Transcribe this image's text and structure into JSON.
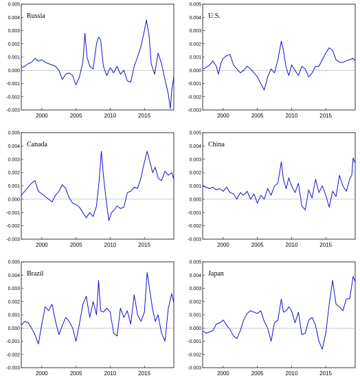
{
  "colors": {
    "line": "#1010d0",
    "zero": "#9a9a9a",
    "frame": "#000000"
  },
  "chart_data": [
    {
      "type": "line",
      "title": "Russia",
      "ylim": [
        -0.003,
        0.005
      ],
      "yticks": [
        0.005,
        0.004,
        0.003,
        0.002,
        0.001,
        0.0,
        -0.001,
        -0.002,
        -0.003
      ],
      "ytick_labels": [
        "0.005",
        "0.004",
        "0.003",
        "0.002",
        "0.001",
        "0.000",
        "-0.001",
        "-0.002",
        "-0.003"
      ],
      "xlim": [
        1997,
        2019.3
      ],
      "xticks": [
        2000,
        2005,
        2010,
        2015
      ],
      "xtick_labels": [
        "2000",
        "2005",
        "2010",
        "2015"
      ],
      "grid": false,
      "series": [
        {
          "x": [
            1997,
            1997.5,
            1998,
            1998.5,
            1999,
            1999.5,
            2000,
            2000.5,
            2001,
            2001.5,
            2002,
            2002.5,
            2003,
            2003.5,
            2004,
            2004.5,
            2005,
            2005.5,
            2006,
            2006.3,
            2006.6,
            2007,
            2007.5,
            2008,
            2008.3,
            2008.6,
            2009,
            2009.5,
            2010,
            2010.5,
            2011,
            2011.5,
            2012,
            2012.5,
            2013,
            2013.5,
            2014,
            2014.5,
            2015,
            2015.3,
            2015.7,
            2016,
            2016.5,
            2017,
            2017.5,
            2018,
            2018.5,
            2018.8,
            2019,
            2019.3
          ],
          "y": [
            0.0002,
            0.0003,
            0.0005,
            0.0006,
            0.0009,
            0.0007,
            0.0008,
            0.0006,
            0.0005,
            0.0004,
            0.0003,
            0.0,
            -0.0007,
            -0.0003,
            -0.0002,
            -0.0004,
            -0.0011,
            -0.0005,
            0.0006,
            0.0028,
            0.001,
            0.0003,
            0.0001,
            0.002,
            0.0025,
            0.0023,
            0.0003,
            -0.0004,
            0.0002,
            -0.0002,
            0.0003,
            -0.0003,
            0.0,
            -0.0008,
            -0.0009,
            0.0003,
            0.001,
            0.0018,
            0.003,
            0.0038,
            0.0025,
            0.0005,
            -0.0003,
            0.0013,
            0.0005,
            -0.0007,
            -0.0018,
            -0.0029,
            -0.0015,
            -0.0005
          ]
        }
      ]
    },
    {
      "type": "line",
      "title": "U.S.",
      "ylim": [
        -0.003,
        0.005
      ],
      "yticks": [
        0.005,
        0.004,
        0.003,
        0.002,
        0.001,
        0.0,
        -0.001,
        -0.002,
        -0.003
      ],
      "ytick_labels": [
        "0.005",
        "0.004",
        "0.003",
        "0.002",
        "0.001",
        "0.000",
        "-0.001",
        "-0.002",
        "-0.003"
      ],
      "xlim": [
        1997,
        2019.3
      ],
      "xticks": [
        2000,
        2005,
        2010,
        2015
      ],
      "xtick_labels": [
        "2000",
        "2005",
        "2010",
        "2015"
      ],
      "grid": false,
      "series": [
        {
          "x": [
            1997,
            1997.5,
            1998,
            1998.5,
            1999,
            1999.3,
            1999.7,
            2000,
            2000.5,
            2001,
            2001.5,
            2002,
            2002.5,
            2003,
            2003.5,
            2004,
            2004.5,
            2005,
            2005.5,
            2006,
            2006.5,
            2007,
            2007.5,
            2008,
            2008.5,
            2008.8,
            2009.2,
            2009.6,
            2010,
            2010.5,
            2011,
            2011.5,
            2012,
            2012.5,
            2013,
            2013.5,
            2014,
            2014.5,
            2015,
            2015.5,
            2016,
            2016.5,
            2017,
            2017.5,
            2018,
            2018.5,
            2019,
            2019.3
          ],
          "y": [
            0.0001,
            0.0002,
            0.0004,
            0.0007,
            0.0003,
            -0.0003,
            0.0006,
            0.0009,
            0.0011,
            0.0012,
            0.0004,
            0.0001,
            -0.0002,
            0.0,
            0.0003,
            0.0001,
            -0.0002,
            -0.0005,
            -0.001,
            -0.0015,
            -0.0005,
            0.0001,
            -0.0002,
            0.0008,
            0.0022,
            0.0015,
            0.0002,
            -0.0004,
            0.0004,
            0.0,
            -0.0004,
            0.0003,
            0.0001,
            -0.0005,
            -0.0002,
            0.0003,
            0.0003,
            0.0008,
            0.0013,
            0.0017,
            0.0015,
            0.0008,
            0.0006,
            0.0006,
            0.0007,
            0.0008,
            0.0009,
            0.0007
          ]
        }
      ]
    },
    {
      "type": "line",
      "title": "Canada",
      "ylim": [
        -0.003,
        0.005
      ],
      "yticks": [
        0.005,
        0.004,
        0.003,
        0.002,
        0.001,
        0.0,
        -0.001,
        -0.002,
        -0.003
      ],
      "ytick_labels": [
        "0.005",
        "0.004",
        "0.003",
        "0.002",
        "0.001",
        "0.000",
        "-0.001",
        "-0.002",
        "-0.003"
      ],
      "xlim": [
        1997,
        2019.3
      ],
      "xticks": [
        2000,
        2005,
        2010,
        2015
      ],
      "xtick_labels": [
        "2000",
        "2005",
        "2010",
        "2015"
      ],
      "grid": false,
      "series": [
        {
          "x": [
            1997,
            1997.5,
            1998,
            1998.5,
            1999,
            1999.5,
            2000,
            2000.5,
            2001,
            2001.5,
            2002,
            2002.5,
            2003,
            2003.5,
            2004,
            2004.5,
            2005,
            2005.5,
            2006,
            2006.5,
            2007,
            2007.5,
            2008,
            2008.4,
            2008.7,
            2009,
            2009.4,
            2009.8,
            2010.2,
            2010.6,
            2011,
            2011.5,
            2012,
            2012.5,
            2013,
            2013.5,
            2014,
            2014.5,
            2015,
            2015.4,
            2015.8,
            2016.2,
            2016.6,
            2017,
            2017.5,
            2018,
            2018.5,
            2019,
            2019.3
          ],
          "y": [
            0.0003,
            0.0006,
            0.0009,
            0.0012,
            0.0014,
            0.0006,
            0.0004,
            0.0002,
            0.0,
            -0.0002,
            0.0003,
            0.0006,
            0.0011,
            0.0008,
            0.0001,
            -0.0003,
            -0.0004,
            -0.0006,
            -0.001,
            -0.0014,
            -0.001,
            -0.0013,
            -0.0005,
            0.0015,
            0.0036,
            0.0018,
            0.0,
            -0.0016,
            -0.001,
            -0.0008,
            -0.0005,
            -0.0007,
            -0.0006,
            0.0005,
            0.0006,
            0.0009,
            0.0008,
            0.0016,
            0.0028,
            0.0036,
            0.0028,
            0.002,
            0.0024,
            0.0016,
            0.0014,
            0.0021,
            0.0018,
            0.002,
            0.0015
          ]
        }
      ]
    },
    {
      "type": "line",
      "title": "China",
      "ylim": [
        -0.003,
        0.005
      ],
      "yticks": [
        0.005,
        0.004,
        0.003,
        0.002,
        0.001,
        0.0,
        -0.001,
        -0.002,
        -0.003
      ],
      "ytick_labels": [
        "0.005",
        "0.004",
        "0.003",
        "0.002",
        "0.001",
        "0.000",
        "-0.001",
        "-0.002",
        "-0.003"
      ],
      "xlim": [
        1997,
        2019.3
      ],
      "xticks": [
        2000,
        2005,
        2010,
        2015
      ],
      "xtick_labels": [
        "2000",
        "2005",
        "2010",
        "2015"
      ],
      "grid": false,
      "series": [
        {
          "x": [
            1997,
            1997.5,
            1998,
            1998.5,
            1999,
            1999.5,
            2000,
            2000.5,
            2001,
            2001.5,
            2002,
            2002.5,
            2003,
            2003.5,
            2004,
            2004.5,
            2005,
            2005.5,
            2006,
            2006.5,
            2007,
            2007.5,
            2008,
            2008.5,
            2008.8,
            2009.2,
            2009.6,
            2010,
            2010.5,
            2011,
            2011.5,
            2012,
            2012.5,
            2013,
            2013.5,
            2014,
            2014.5,
            2015,
            2015.5,
            2016,
            2016.5,
            2017,
            2017.5,
            2018,
            2018.5,
            2018.8,
            2019,
            2019.3
          ],
          "y": [
            0.001,
            0.0009,
            0.0008,
            0.0009,
            0.0007,
            0.0008,
            0.0006,
            0.0009,
            0.0005,
            0.0004,
            0.0,
            0.0005,
            0.0003,
            0.0006,
            0.0,
            0.0004,
            -0.0003,
            0.0003,
            0.0,
            0.0008,
            0.0003,
            0.001,
            0.0012,
            0.0028,
            0.0015,
            0.0008,
            0.0016,
            0.001,
            0.0005,
            0.0012,
            -0.0005,
            -0.0008,
            0.0007,
            0.0001,
            0.0015,
            0.0005,
            0.001,
            0.0003,
            -0.0006,
            0.0006,
            0.0002,
            0.0018,
            0.001,
            0.0006,
            0.0015,
            0.0018,
            0.0031,
            0.0027
          ]
        }
      ]
    },
    {
      "type": "line",
      "title": "Brazil",
      "ylim": [
        -0.003,
        0.005
      ],
      "yticks": [
        0.005,
        0.004,
        0.003,
        0.002,
        0.001,
        0.0,
        -0.001,
        -0.002,
        -0.003
      ],
      "ytick_labels": [
        "0.005",
        "0.004",
        "0.003",
        "0.002",
        "0.001",
        "0.000",
        "-0.001",
        "-0.002",
        "-0.003"
      ],
      "xlim": [
        1997,
        2019.3
      ],
      "xticks": [
        2000,
        2005,
        2010,
        2015
      ],
      "xtick_labels": [
        "2000",
        "2005",
        "2010",
        "2015"
      ],
      "grid": false,
      "series": [
        {
          "x": [
            1997,
            1997.5,
            1998,
            1998.5,
            1999,
            1999.5,
            2000,
            2000.5,
            2001,
            2001.5,
            2002,
            2002.5,
            2003,
            2003.5,
            2004,
            2004.5,
            2005,
            2005.5,
            2006,
            2006.5,
            2007,
            2007.5,
            2008,
            2008.3,
            2008.6,
            2009,
            2009.5,
            2010,
            2010.5,
            2011,
            2011.5,
            2012,
            2012.5,
            2013,
            2013.5,
            2014,
            2014.5,
            2015,
            2015.4,
            2015.8,
            2016.2,
            2016.6,
            2017,
            2017.5,
            2018,
            2018.5,
            2019,
            2019.3
          ],
          "y": [
            0.0002,
            0.0005,
            0.0004,
            0.0,
            -0.0005,
            -0.0012,
            0.0003,
            0.0016,
            0.0013,
            0.0018,
            0.0005,
            -0.0005,
            0.0002,
            0.0008,
            0.0005,
            0.0,
            -0.001,
            0.0003,
            0.0018,
            0.0024,
            0.0008,
            0.002,
            0.001,
            0.0036,
            0.0013,
            0.0012,
            0.0015,
            0.0012,
            -0.0004,
            -0.0006,
            0.0015,
            0.0008,
            0.0013,
            0.0003,
            0.0025,
            0.001,
            0.0005,
            0.0012,
            0.0042,
            0.0028,
            0.0014,
            0.0005,
            0.001,
            -0.0004,
            -0.001,
            0.0015,
            0.0026,
            0.0019
          ]
        }
      ]
    },
    {
      "type": "line",
      "title": "Japan",
      "ylim": [
        -0.003,
        0.005
      ],
      "yticks": [
        0.005,
        0.004,
        0.003,
        0.002,
        0.001,
        0.0,
        -0.001,
        -0.002,
        -0.003
      ],
      "ytick_labels": [
        "0.005",
        "0.004",
        "0.003",
        "0.002",
        "0.001",
        "0.000",
        "-0.001",
        "-0.002",
        "-0.003"
      ],
      "xlim": [
        1997,
        2019.3
      ],
      "xticks": [
        2000,
        2005,
        2010,
        2015
      ],
      "xtick_labels": [
        "2000",
        "2005",
        "2010",
        "2015"
      ],
      "grid": false,
      "series": [
        {
          "x": [
            1997,
            1997.5,
            1998,
            1998.5,
            1999,
            1999.5,
            2000,
            2000.5,
            2001,
            2001.5,
            2002,
            2002.5,
            2003,
            2003.5,
            2004,
            2004.5,
            2005,
            2005.5,
            2006,
            2006.5,
            2007,
            2007.5,
            2008,
            2008.5,
            2008.8,
            2009.2,
            2009.6,
            2010,
            2010.5,
            2011,
            2011.5,
            2012,
            2012.5,
            2013,
            2013.5,
            2014,
            2014.5,
            2015,
            2015.5,
            2016,
            2016.5,
            2017,
            2017.5,
            2018,
            2018.5,
            2019,
            2019.3
          ],
          "y": [
            -0.0002,
            -0.0004,
            -0.0003,
            -0.0002,
            0.0003,
            0.0004,
            0.0006,
            0.0002,
            -0.0001,
            -0.0006,
            -0.0008,
            -0.0002,
            0.0006,
            0.0011,
            0.0013,
            0.0012,
            0.0011,
            0.0013,
            0.0005,
            0.0,
            -0.001,
            0.0004,
            0.0006,
            0.0022,
            0.0012,
            0.0013,
            0.0016,
            0.0013,
            0.0004,
            0.0012,
            -0.0005,
            -0.0004,
            0.0006,
            0.0008,
            0.0002,
            -0.001,
            -0.0016,
            -0.0004,
            0.0018,
            0.0036,
            0.0018,
            0.0016,
            0.0013,
            0.0022,
            0.0022,
            0.0039,
            0.0035
          ]
        }
      ]
    }
  ]
}
